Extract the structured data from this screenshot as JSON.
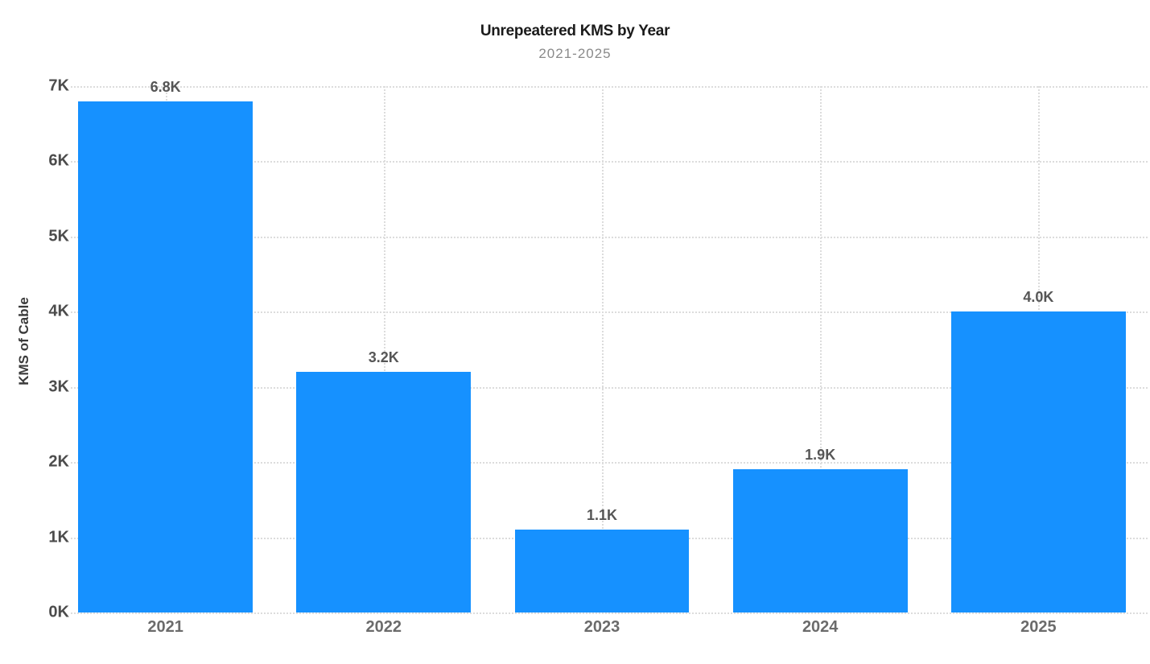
{
  "chart_data": {
    "type": "bar",
    "title": "Unrepeatered KMS by Year",
    "subtitle": "2021-2025",
    "categories": [
      "2021",
      "2022",
      "2023",
      "2024",
      "2025"
    ],
    "values": [
      6800,
      3200,
      1100,
      1900,
      4000
    ],
    "value_labels": [
      "6.8K",
      "3.2K",
      "1.1K",
      "1.9K",
      "4.0K"
    ],
    "xlabel": "",
    "ylabel": "KMS of Cable",
    "ylim": [
      0,
      7000
    ],
    "ytick_values": [
      0,
      1000,
      2000,
      3000,
      4000,
      5000,
      6000,
      7000
    ],
    "ytick_labels": [
      "0K",
      "1K",
      "2K",
      "3K",
      "4K",
      "5K",
      "6K",
      "7K"
    ],
    "grid": "dotted-horizontal-and-vertical",
    "legend": "none",
    "colors": {
      "bar": "#1691ff",
      "grid": "#dcdcdc",
      "title": "#1b1b1b",
      "subtitle": "#8a8a8a",
      "axis_title": "#3a3a3a",
      "y_tick": "#4c4c4c",
      "x_tick": "#6b6b6b",
      "value_label": "#565656",
      "background": "#ffffff"
    }
  }
}
